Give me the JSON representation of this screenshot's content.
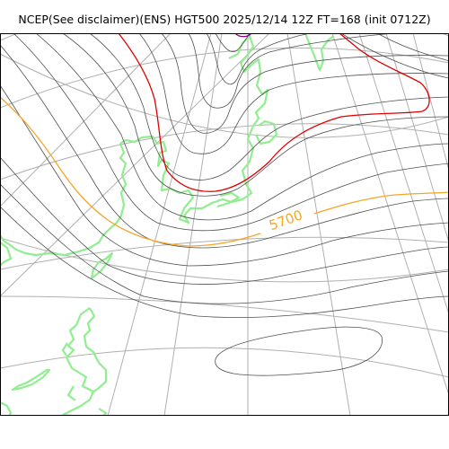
{
  "title": "NCEP(See disclaimer)(ENS) HGT500 2025/12/14 12Z FT=168 (init 0712Z)",
  "contour_label": "5700",
  "colors": {
    "grid": "#b0b0b0",
    "contour": "#505050",
    "highlight_red": "#e00000",
    "highlight_orange": "#f5a623",
    "coast": "#90ee90",
    "frame": "#000000",
    "purple": "#800080"
  }
}
